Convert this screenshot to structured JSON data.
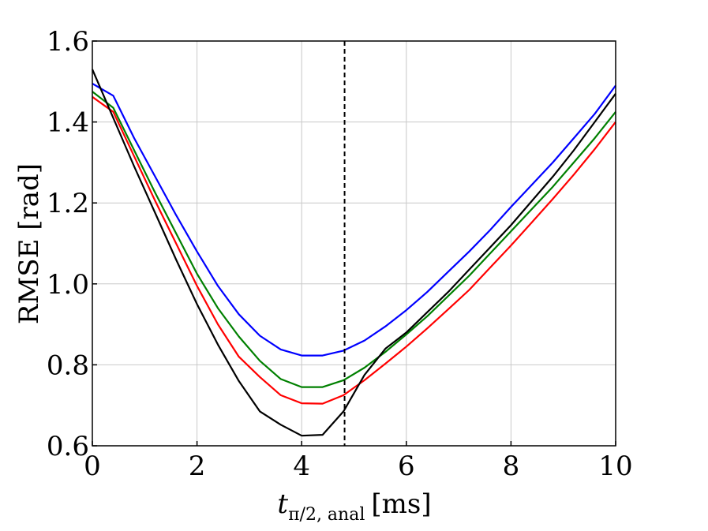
{
  "chart_data": {
    "type": "line",
    "title": "",
    "xlabel_main": "t",
    "xlabel_sub": "π/2, anal",
    "xlabel_unit": "[ms]",
    "ylabel": "RMSE [rad]",
    "xlim": [
      0,
      10
    ],
    "ylim": [
      0.6,
      1.6
    ],
    "xticks": [
      0,
      2,
      4,
      6,
      8,
      10
    ],
    "yticks": [
      0.6,
      0.8,
      1.0,
      1.2,
      1.4,
      1.6
    ],
    "xtick_labels": [
      "0",
      "2",
      "4",
      "6",
      "8",
      "10"
    ],
    "ytick_labels": [
      "0.6",
      "0.8",
      "1.0",
      "1.2",
      "1.4",
      "1.6"
    ],
    "grid": true,
    "vline": {
      "x": 4.82,
      "style": "dashed",
      "color": "#000000"
    },
    "series": [
      {
        "name": "blue",
        "color": "#0000ff",
        "x": [
          0,
          0.4,
          0.8,
          1.2,
          1.6,
          2.0,
          2.4,
          2.8,
          3.2,
          3.6,
          4.0,
          4.4,
          4.8,
          5.2,
          5.6,
          6.0,
          6.4,
          6.8,
          7.2,
          7.6,
          8.0,
          8.4,
          8.8,
          9.2,
          9.6,
          10.0
        ],
        "y": [
          1.495,
          1.465,
          1.36,
          1.265,
          1.17,
          1.08,
          0.995,
          0.925,
          0.872,
          0.838,
          0.823,
          0.823,
          0.835,
          0.86,
          0.895,
          0.935,
          0.98,
          1.03,
          1.08,
          1.133,
          1.19,
          1.245,
          1.3,
          1.36,
          1.42,
          1.49
        ]
      },
      {
        "name": "green",
        "color": "#008000",
        "x": [
          0,
          0.4,
          0.8,
          1.2,
          1.6,
          2.0,
          2.4,
          2.8,
          3.2,
          3.6,
          4.0,
          4.4,
          4.8,
          5.2,
          5.6,
          6.0,
          6.4,
          6.8,
          7.2,
          7.6,
          8.0,
          8.4,
          8.8,
          9.2,
          9.6,
          10.0
        ],
        "y": [
          1.475,
          1.435,
          1.33,
          1.225,
          1.125,
          1.025,
          0.94,
          0.87,
          0.81,
          0.765,
          0.745,
          0.745,
          0.762,
          0.793,
          0.832,
          0.875,
          0.92,
          0.97,
          1.02,
          1.075,
          1.13,
          1.185,
          1.24,
          1.3,
          1.36,
          1.425
        ]
      },
      {
        "name": "red",
        "color": "#ff0000",
        "x": [
          0,
          0.4,
          0.8,
          1.2,
          1.6,
          2.0,
          2.4,
          2.8,
          3.2,
          3.6,
          4.0,
          4.4,
          4.8,
          5.2,
          5.6,
          6.0,
          6.4,
          6.8,
          7.2,
          7.6,
          8.0,
          8.4,
          8.8,
          9.2,
          9.6,
          10.0
        ],
        "y": [
          1.462,
          1.425,
          1.315,
          1.205,
          1.1,
          0.995,
          0.9,
          0.82,
          0.77,
          0.725,
          0.705,
          0.704,
          0.725,
          0.762,
          0.803,
          0.845,
          0.89,
          0.937,
          0.985,
          1.04,
          1.095,
          1.152,
          1.21,
          1.27,
          1.333,
          1.4
        ]
      },
      {
        "name": "black",
        "color": "#000000",
        "x": [
          0,
          0.4,
          0.8,
          1.2,
          1.6,
          2.0,
          2.4,
          2.8,
          3.2,
          3.6,
          4.0,
          4.4,
          4.8,
          5.2,
          5.6,
          6.0,
          6.4,
          6.8,
          7.2,
          7.6,
          8.0,
          8.4,
          8.8,
          9.2,
          9.6,
          10.0
        ],
        "y": [
          1.53,
          1.41,
          1.29,
          1.175,
          1.06,
          0.95,
          0.85,
          0.76,
          0.685,
          0.652,
          0.625,
          0.627,
          0.685,
          0.775,
          0.84,
          0.88,
          0.93,
          0.98,
          1.035,
          1.09,
          1.145,
          1.205,
          1.265,
          1.33,
          1.4,
          1.47
        ]
      }
    ]
  }
}
